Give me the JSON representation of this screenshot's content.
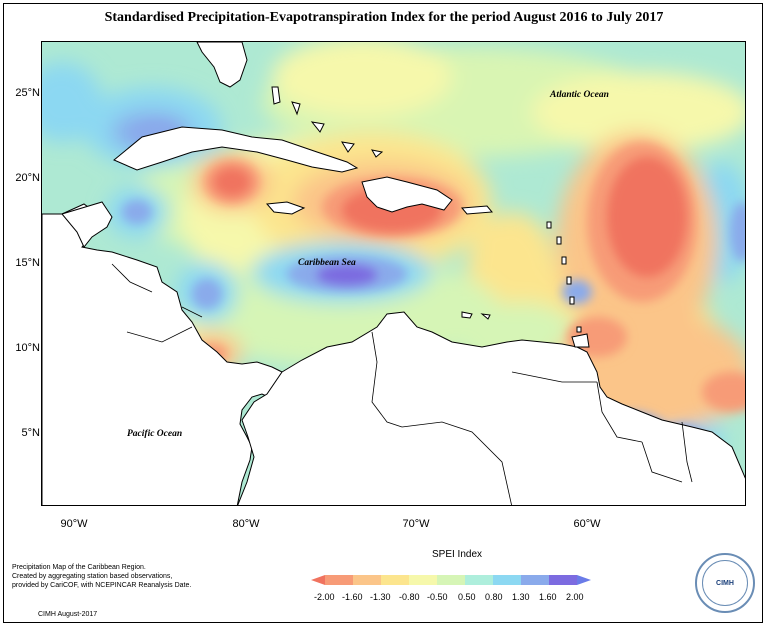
{
  "title": "Standardised Precipitation-Evapotranspiration Index for the period August 2016 to July 2017",
  "axes": {
    "lat_labels": [
      "25°N",
      "20°N",
      "15°N",
      "10°N",
      "5°N"
    ],
    "lon_labels": [
      "90°W",
      "80°W",
      "70°W",
      "60°W"
    ]
  },
  "labels": {
    "atlantic": "Atlantic Ocean",
    "caribbean": "Caribbean Sea",
    "pacific": "Pacific Ocean"
  },
  "notes": {
    "line1": "Precipitation Map of the Caribbean Region.",
    "line2": "Created by aggregating station based observations,",
    "line3": "provided by CariCOF, with NCEPINCAR Reanalysis Date.",
    "credit": "CIMH August-2017"
  },
  "legend": {
    "title": "SPEI Index",
    "ticks": [
      "-2.00",
      "-1.60",
      "-1.30",
      "-0.80",
      "-0.50",
      "0.50",
      "0.80",
      "1.30",
      "1.60",
      "2.00"
    ],
    "colors": [
      "#f0735f",
      "#f79b77",
      "#fbc589",
      "#fce58e",
      "#f6f8ab",
      "#d6f5b6",
      "#aeeedc",
      "#8cd8f2",
      "#8aaaeb",
      "#7c6be0",
      "#6a7be8"
    ]
  },
  "logo": {
    "text": "CIMH"
  },
  "colors": {
    "land_fill": "#ffffff",
    "border": "#000000"
  }
}
